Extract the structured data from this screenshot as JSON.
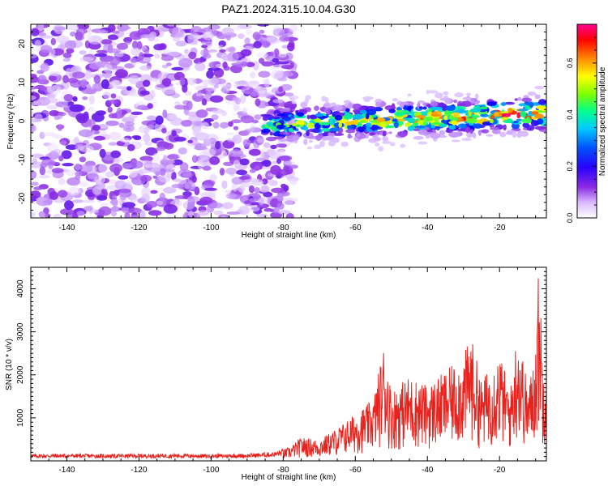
{
  "title": "PAZ1.2024.315.10.04.G30",
  "chart_data": [
    {
      "type": "heatmap",
      "xlabel": "Height of straight line (km)",
      "ylabel": "Frequency (Hz)",
      "xlim": [
        -150,
        -7
      ],
      "ylim": [
        -25,
        25
      ],
      "x_ticks": [
        -140,
        -120,
        -100,
        -80,
        -60,
        -40,
        -20
      ],
      "y_ticks": [
        -20,
        -10,
        0,
        10,
        20
      ],
      "colorbar": {
        "label": "Normalized spectral amplitude",
        "range": [
          0,
          0.75
        ],
        "ticks": [
          0.0,
          0.2,
          0.4,
          0.6
        ],
        "colors": [
          "#ffffff",
          "#cfa8ff",
          "#8a2be2",
          "#0000ff",
          "#00c0ff",
          "#00ff80",
          "#7fff00",
          "#ffff00",
          "#ff8000",
          "#ff0000",
          "#ff0080"
        ]
      },
      "features": [
        {
          "region": "noise",
          "x_range": [
            -150,
            -77
          ],
          "freq_range": [
            -25,
            25
          ],
          "amplitude": 0.08
        },
        {
          "region": "signal",
          "x_range": [
            -85,
            -7
          ],
          "freq_center_start": -1,
          "freq_center_end": 2,
          "amplitude_peak": 0.7
        }
      ]
    },
    {
      "type": "line",
      "xlabel": "Height of straight line (km)",
      "ylabel": "SNR (10 * v/v)",
      "xlim": [
        -150,
        -7
      ],
      "ylim": [
        0,
        4500
      ],
      "x_ticks": [
        -140,
        -120,
        -100,
        -80,
        -60,
        -40,
        -20
      ],
      "y_ticks": [
        1000,
        2000,
        3000,
        4000
      ],
      "color": "#e8231e",
      "x": [
        -150,
        -140,
        -130,
        -120,
        -110,
        -100,
        -90,
        -82,
        -78,
        -75,
        -70,
        -65,
        -60,
        -55,
        -52,
        -50,
        -45,
        -40,
        -35,
        -30,
        -28,
        -25,
        -20,
        -17,
        -15,
        -12,
        -10,
        -9,
        -8,
        -7
      ],
      "y": [
        130,
        140,
        130,
        135,
        140,
        130,
        140,
        180,
        300,
        500,
        450,
        700,
        1000,
        1300,
        2500,
        1500,
        1800,
        1600,
        1900,
        2200,
        2700,
        1700,
        2300,
        1500,
        2900,
        1500,
        2500,
        4450,
        2000,
        2600
      ]
    }
  ]
}
